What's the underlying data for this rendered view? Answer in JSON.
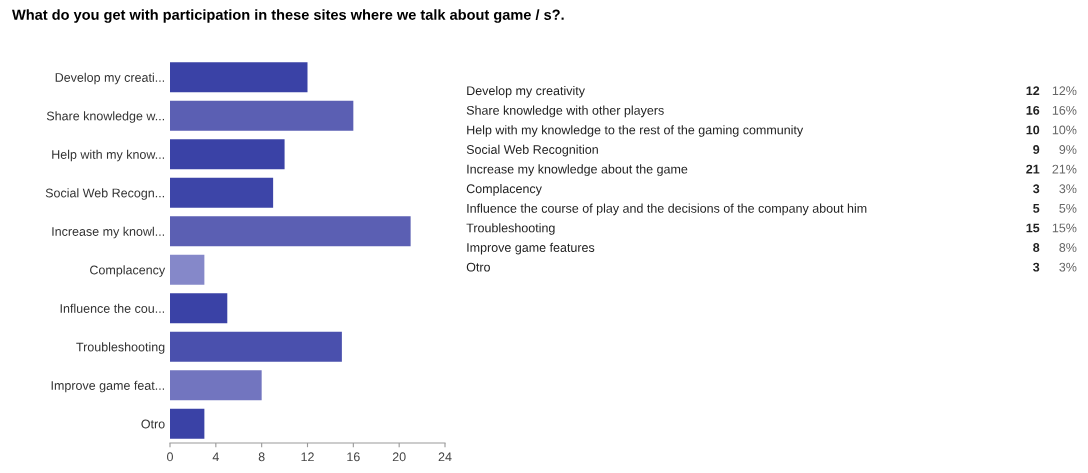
{
  "chart_data": [
    {
      "type": "bar",
      "orientation": "horizontal",
      "title": "What do you get with participation in these sites where we talk about game / s?.",
      "categories": [
        "Develop my creati...",
        "Share knowledge w...",
        "Help with my know...",
        "Social Web Recogn...",
        "Increase my knowl...",
        "Complacency",
        "Influence the cou...",
        "Troubleshooting",
        "Improve game feat...",
        "Otro"
      ],
      "values": [
        12,
        16,
        10,
        9,
        21,
        3,
        5,
        15,
        8,
        3
      ],
      "colors": [
        "#3a42a6",
        "#5b5fb3",
        "#3a42a6",
        "#3d45a8",
        "#5b5fb3",
        "#8588c9",
        "#3a42a6",
        "#4a50ad",
        "#7275bf",
        "#3a42a6"
      ],
      "xlim": [
        0,
        24
      ],
      "xticks": [
        0,
        4,
        8,
        12,
        16,
        20,
        24
      ],
      "grid": false,
      "legend": false
    },
    {
      "type": "other",
      "annotations": [
        "Develop my creativity",
        "12",
        "12%",
        "Share knowledge with other players",
        "16",
        "16%",
        "Help with my knowledge to the rest of the gaming community",
        "10",
        "10%",
        "Social Web Recognition",
        "9",
        "9%",
        "Increase my knowledge about the game",
        "21",
        "21%",
        "Complacency",
        "3",
        "3%",
        "Influence the course of play and the decisions of the company about him",
        "5",
        "5%",
        "Troubleshooting",
        "15",
        "15%",
        "Improve game features",
        "8",
        "8%",
        "Otro",
        "3",
        "3%"
      ]
    }
  ]
}
